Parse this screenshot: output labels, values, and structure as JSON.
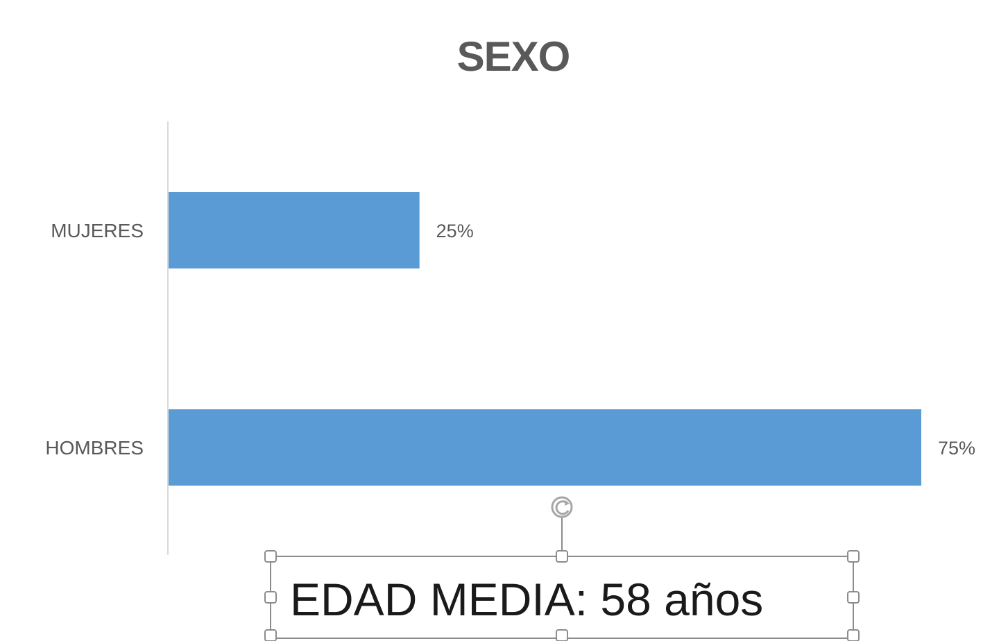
{
  "chart_data": {
    "type": "bar",
    "orientation": "horizontal",
    "title": "SEXO",
    "categories": [
      "MUJERES",
      "HOMBRES"
    ],
    "values": [
      25,
      75
    ],
    "data_labels": [
      "25%",
      "75%"
    ],
    "unit": "%",
    "xlabel": "",
    "ylabel": "",
    "xlim": [
      0,
      75
    ],
    "grid": false,
    "legend": "none",
    "colors": {
      "bar": "#5b9bd5",
      "axis": "#d9d9d9",
      "text": "#595959"
    }
  },
  "textbox": {
    "text": "EDAD MEDIA: 58 años",
    "selected": true
  }
}
